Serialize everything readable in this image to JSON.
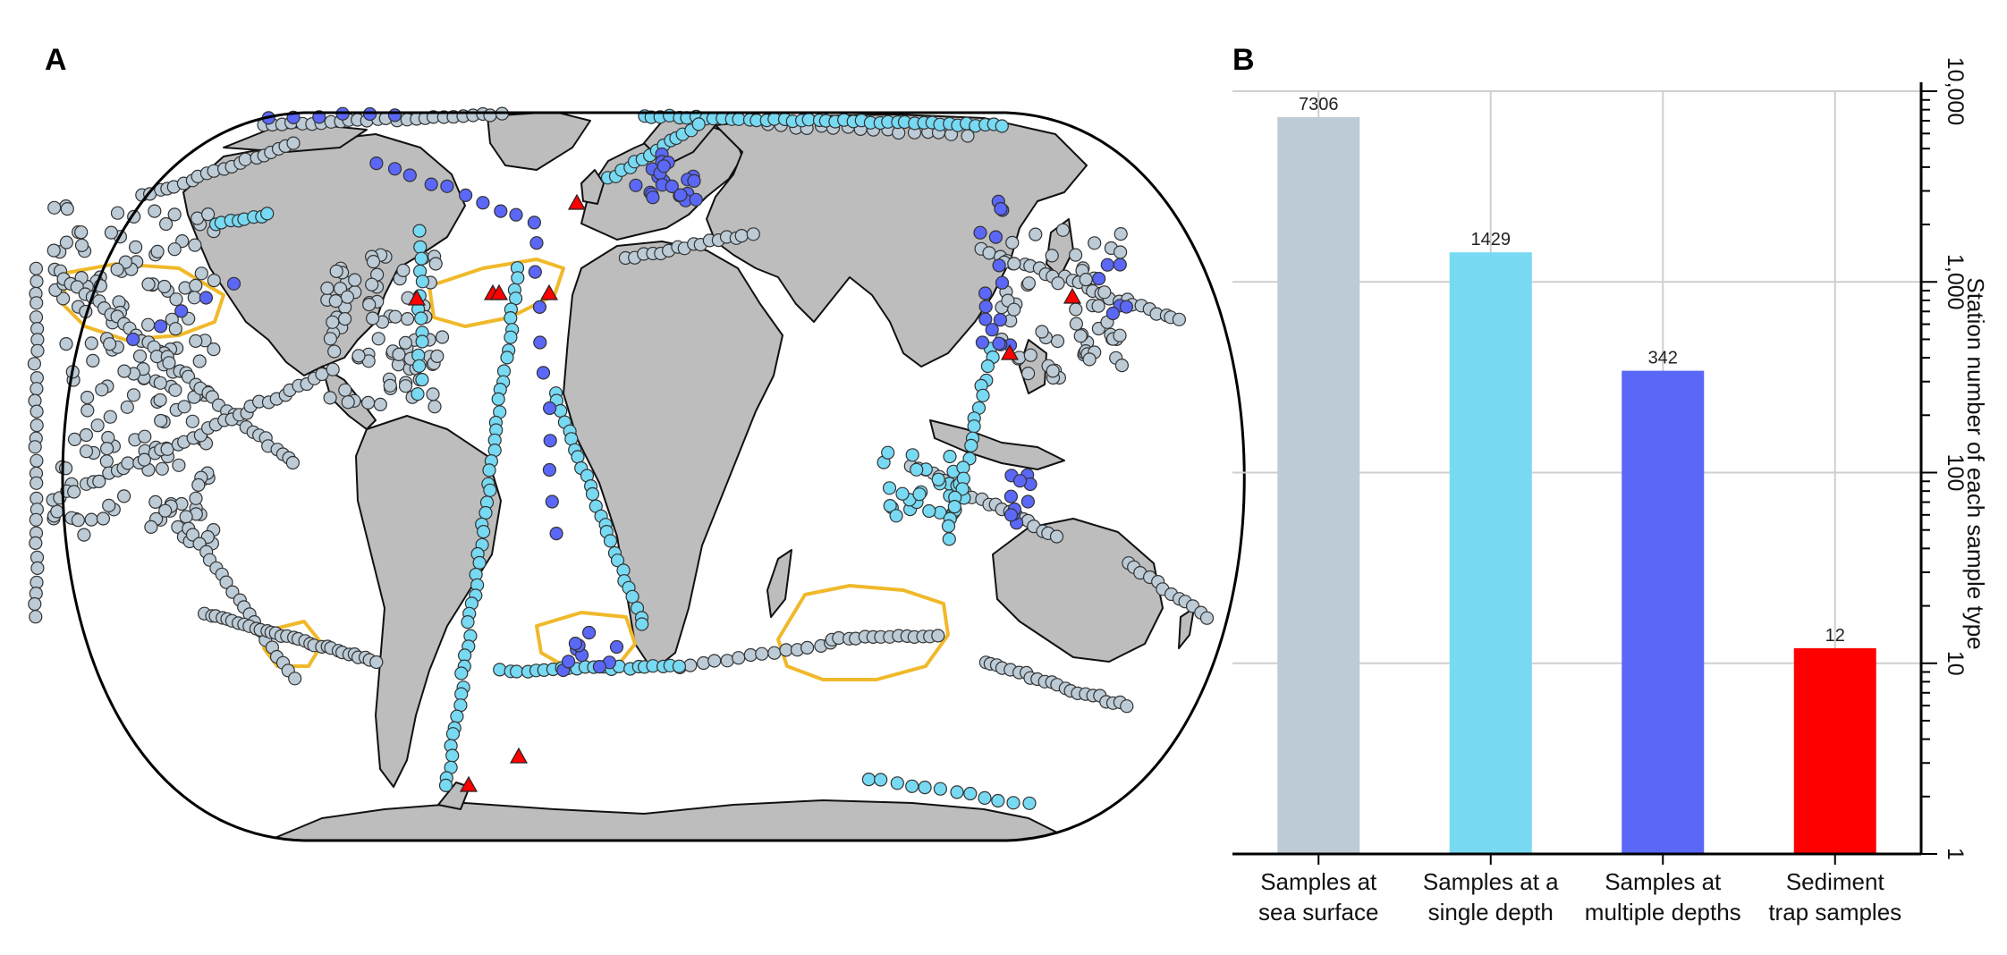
{
  "panels": {
    "a_letter": "A",
    "b_letter": "B"
  },
  "colors": {
    "land": "#bdbdbd",
    "ocean": "#ffffff",
    "sea_surface": "#bccbd6",
    "single_depth": "#78d9f2",
    "multiple_depths": "#5b67f7",
    "sediment_trap": "#ff0000",
    "study_region_outline": "#f0b92a",
    "grid": "#cfcfcf"
  },
  "map": {
    "projection": "world map (Robinson-like)",
    "marker_types": [
      "circle",
      "circle",
      "circle",
      "triangle"
    ]
  },
  "chart_data": {
    "type": "bar",
    "y_scale": "log",
    "categories": [
      [
        "Samples at",
        "sea surface"
      ],
      [
        "Samples at a",
        "single depth"
      ],
      [
        "Samples at",
        "multiple depths"
      ],
      [
        "Sediment",
        "trap samples"
      ]
    ],
    "values": [
      7306,
      1429,
      342,
      12
    ],
    "value_labels": [
      "7306",
      "1429",
      "342",
      "12"
    ],
    "bar_colors": [
      "#bccbd6",
      "#78d9f2",
      "#5b67f7",
      "#ff0000"
    ],
    "ylim": [
      1,
      10000
    ],
    "ytick_values": [
      1,
      10,
      100,
      1000,
      10000
    ],
    "ytick_labels": [
      "1",
      "10",
      "100",
      "1,000",
      "10,000"
    ],
    "ylabel": "Station number of each sample type",
    "xlabel": "",
    "title": "",
    "grid": true,
    "axis_side": "right"
  }
}
